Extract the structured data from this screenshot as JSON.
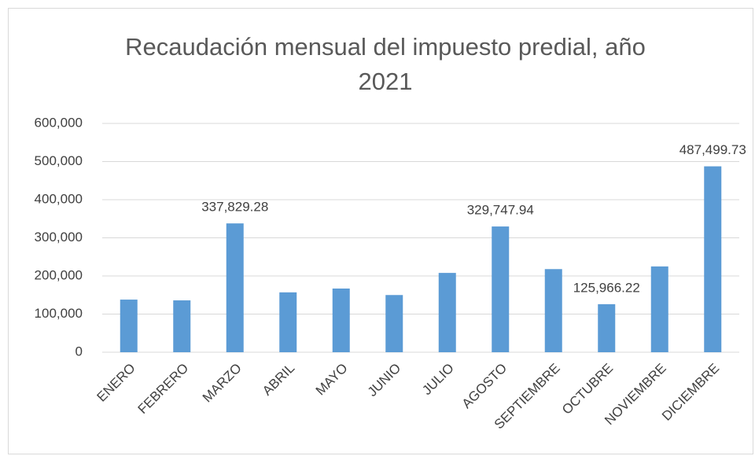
{
  "chart_data": {
    "type": "bar",
    "title": "Recaudación mensual del impuesto predial, año 2021",
    "categories": [
      "ENERO",
      "FEBRERO",
      "MARZO",
      "ABRIL",
      "MAYO",
      "JUNIO",
      "JULIO",
      "AGOSTO",
      "SEPTIEMBRE",
      "OCTUBRE",
      "NOVIEMBRE",
      "DICIEMBRE"
    ],
    "values": [
      138000,
      136000,
      337829.28,
      157000,
      167000,
      150000,
      208000,
      329747.94,
      218000,
      125966.22,
      225000,
      487499.73
    ],
    "value_labels": [
      null,
      null,
      "337,829.28",
      null,
      null,
      null,
      null,
      "329,747.94",
      null,
      "125,966.22",
      null,
      "487,499.73"
    ],
    "color": "#5b9bd5",
    "ylim": [
      0,
      600000
    ],
    "yticks": [
      0,
      {
        "value": 100000,
        "label": "100,000"
      },
      {
        "value": 200000,
        "label": "200,000"
      },
      {
        "value": 300000,
        "label": "300,000"
      },
      {
        "value": 400000,
        "label": "400,000"
      },
      {
        "value": 500000,
        "label": "500,000"
      },
      {
        "value": 600000,
        "label": "600,000"
      }
    ],
    "grid": true
  }
}
